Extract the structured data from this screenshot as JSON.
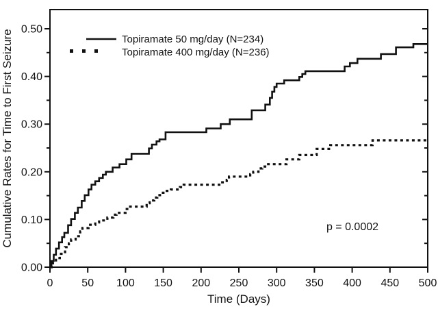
{
  "figure": {
    "background": "#ffffff",
    "line_color": "#111111"
  },
  "chart_data": {
    "type": "line",
    "variant": "kaplan-meier-step-plot",
    "title": "",
    "xlabel": "Time (Days)",
    "ylabel": "Cumulative Rates for Time to First Seizure",
    "xlim": [
      0,
      500
    ],
    "ylim": [
      0,
      0.54
    ],
    "grid": false,
    "legend_position": "upper-left-inside",
    "annotation": "p = 0.0002",
    "x_ticks": [
      0,
      50,
      100,
      150,
      200,
      250,
      300,
      350,
      400,
      450,
      500
    ],
    "x_tick_labels": [
      "0",
      "50",
      "100",
      "150",
      "200",
      "250",
      "300",
      "350",
      "400",
      "450",
      "500"
    ],
    "y_ticks": [
      0,
      0.1,
      0.2,
      0.3,
      0.4,
      0.5
    ],
    "y_tick_labels": [
      "0.00",
      "0.10",
      "0.20",
      "0.30",
      "0.40",
      "0.50"
    ],
    "y_minor_ticks": [
      0.05,
      0.15,
      0.25,
      0.35,
      0.45
    ],
    "series": [
      {
        "name": "Topiramate 50 mg/day (N=234)",
        "line_style": "solid",
        "points": [
          [
            0,
            0
          ],
          [
            2,
            0.013
          ],
          [
            5,
            0.026
          ],
          [
            8,
            0.039
          ],
          [
            12,
            0.052
          ],
          [
            16,
            0.063
          ],
          [
            19,
            0.072
          ],
          [
            24,
            0.088
          ],
          [
            28,
            0.101
          ],
          [
            33,
            0.114
          ],
          [
            37,
            0.125
          ],
          [
            42,
            0.139
          ],
          [
            46,
            0.151
          ],
          [
            51,
            0.163
          ],
          [
            55,
            0.173
          ],
          [
            60,
            0.18
          ],
          [
            65,
            0.187
          ],
          [
            70,
            0.194
          ],
          [
            74,
            0.2
          ],
          [
            83,
            0.209
          ],
          [
            92,
            0.216
          ],
          [
            101,
            0.226
          ],
          [
            108,
            0.238
          ],
          [
            131,
            0.249
          ],
          [
            135,
            0.257
          ],
          [
            141,
            0.264
          ],
          [
            145,
            0.268
          ],
          [
            153,
            0.283
          ],
          [
            207,
            0.291
          ],
          [
            226,
            0.3
          ],
          [
            238,
            0.31
          ],
          [
            267,
            0.329
          ],
          [
            285,
            0.341
          ],
          [
            291,
            0.355
          ],
          [
            294,
            0.368
          ],
          [
            297,
            0.378
          ],
          [
            300,
            0.385
          ],
          [
            310,
            0.392
          ],
          [
            330,
            0.399
          ],
          [
            334,
            0.405
          ],
          [
            338,
            0.411
          ],
          [
            390,
            0.421
          ],
          [
            397,
            0.428
          ],
          [
            407,
            0.437
          ],
          [
            438,
            0.447
          ],
          [
            458,
            0.461
          ],
          [
            481,
            0.468
          ],
          [
            500,
            0.468
          ]
        ]
      },
      {
        "name": "Topiramate 400 mg/day (N=236)",
        "line_style": "dotted",
        "points": [
          [
            0,
            0
          ],
          [
            4,
            0.01
          ],
          [
            8,
            0.019
          ],
          [
            13,
            0.028
          ],
          [
            20,
            0.042
          ],
          [
            25,
            0.05
          ],
          [
            28,
            0.058
          ],
          [
            34,
            0.065
          ],
          [
            40,
            0.075
          ],
          [
            43,
            0.082
          ],
          [
            51,
            0.089
          ],
          [
            60,
            0.094
          ],
          [
            65,
            0.098
          ],
          [
            76,
            0.104
          ],
          [
            84,
            0.11
          ],
          [
            88,
            0.114
          ],
          [
            100,
            0.122
          ],
          [
            104,
            0.127
          ],
          [
            128,
            0.134
          ],
          [
            132,
            0.14
          ],
          [
            138,
            0.146
          ],
          [
            142,
            0.151
          ],
          [
            148,
            0.156
          ],
          [
            152,
            0.16
          ],
          [
            160,
            0.163
          ],
          [
            172,
            0.168
          ],
          [
            177,
            0.173
          ],
          [
            228,
            0.178
          ],
          [
            234,
            0.183
          ],
          [
            237,
            0.19
          ],
          [
            265,
            0.195
          ],
          [
            269,
            0.2
          ],
          [
            276,
            0.207
          ],
          [
            281,
            0.211
          ],
          [
            287,
            0.216
          ],
          [
            313,
            0.226
          ],
          [
            330,
            0.235
          ],
          [
            353,
            0.248
          ],
          [
            371,
            0.256
          ],
          [
            427,
            0.266
          ],
          [
            500,
            0.266
          ]
        ]
      }
    ]
  }
}
